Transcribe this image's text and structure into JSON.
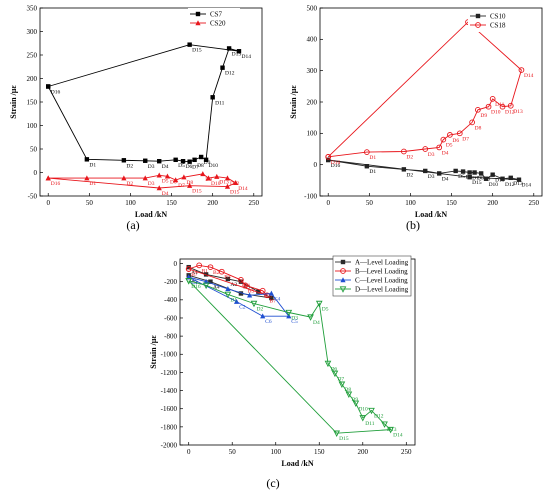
{
  "panels": {
    "a": {
      "caption": "(a)"
    },
    "b": {
      "caption": "(b)"
    },
    "c": {
      "caption": "(c)"
    }
  },
  "chart_data": [
    {
      "id": "a",
      "type": "line",
      "caption": "(a)",
      "xlabel": "Load /kN",
      "ylabel": "Strain /με",
      "xlim": [
        -10,
        260
      ],
      "ylim": [
        -50,
        350
      ],
      "xticks": [
        0,
        50,
        100,
        150,
        200,
        250
      ],
      "yticks": [
        -50,
        0,
        50,
        100,
        150,
        200,
        250,
        300,
        350
      ],
      "grid": false,
      "legend_position": "top-right",
      "series": [
        {
          "name": "CS7",
          "color": "#000000",
          "marker": "square",
          "points": [
            {
              "x": 0,
              "y": 183,
              "label": "D16"
            },
            {
              "x": 47,
              "y": 28,
              "label": "D1"
            },
            {
              "x": 92,
              "y": 26,
              "label": "D2"
            },
            {
              "x": 118,
              "y": 25,
              "label": "D3"
            },
            {
              "x": 135,
              "y": 24,
              "label": "D4"
            },
            {
              "x": 155,
              "y": 27,
              "label": "D5"
            },
            {
              "x": 164,
              "y": 24,
              "label": "D6"
            },
            {
              "x": 172,
              "y": 23,
              "label": "D7"
            },
            {
              "x": 178,
              "y": 27,
              "label": "D8"
            },
            {
              "x": 186,
              "y": 33,
              "label": "D9"
            },
            {
              "x": 192,
              "y": 27,
              "label": "D10"
            },
            {
              "x": 200,
              "y": 160,
              "label": "D11"
            },
            {
              "x": 212,
              "y": 223,
              "label": "D12"
            },
            {
              "x": 220,
              "y": 264,
              "label": "D13"
            },
            {
              "x": 232,
              "y": 258,
              "label": "D14"
            },
            {
              "x": 172,
              "y": 272,
              "label": "D15"
            },
            {
              "x": 0,
              "y": 183,
              "label": ""
            }
          ]
        },
        {
          "name": "CS20",
          "color": "#e8161c",
          "marker": "triangle",
          "points": [
            {
              "x": 0,
              "y": -12,
              "label": "D16"
            },
            {
              "x": 47,
              "y": -12,
              "label": "D1"
            },
            {
              "x": 92,
              "y": -12,
              "label": "D2"
            },
            {
              "x": 118,
              "y": -12,
              "label": "D3"
            },
            {
              "x": 135,
              "y": -6,
              "label": "D5"
            },
            {
              "x": 145,
              "y": -8,
              "label": "D6"
            },
            {
              "x": 155,
              "y": -16,
              "label": "D7"
            },
            {
              "x": 165,
              "y": -10,
              "label": "D8"
            },
            {
              "x": 188,
              "y": -3,
              "label": "D9"
            },
            {
              "x": 195,
              "y": -12,
              "label": "D10"
            },
            {
              "x": 205,
              "y": -9,
              "label": "D13"
            },
            {
              "x": 218,
              "y": -12,
              "label": "D12"
            },
            {
              "x": 228,
              "y": -22,
              "label": "D14"
            },
            {
              "x": 218,
              "y": -30,
              "label": "D15"
            },
            {
              "x": 172,
              "y": -28,
              "label": "D15"
            },
            {
              "x": 135,
              "y": -33,
              "label": "D4"
            },
            {
              "x": 0,
              "y": -12,
              "label": ""
            }
          ]
        }
      ]
    },
    {
      "id": "b",
      "type": "line",
      "caption": "(b)",
      "xlabel": "Load /kN",
      "ylabel": "Strain /με",
      "xlim": [
        -10,
        260
      ],
      "ylim": [
        -100,
        500
      ],
      "xticks": [
        0,
        50,
        100,
        150,
        200,
        250
      ],
      "yticks": [
        -100,
        0,
        100,
        200,
        300,
        400,
        500
      ],
      "grid": false,
      "legend_position": "top-right",
      "series": [
        {
          "name": "CS10",
          "color": "#222222",
          "marker": "square",
          "points": [
            {
              "x": 0,
              "y": 15,
              "label": "D16"
            },
            {
              "x": 47,
              "y": -5,
              "label": "D1"
            },
            {
              "x": 92,
              "y": -15,
              "label": "D2"
            },
            {
              "x": 118,
              "y": -20,
              "label": "D3"
            },
            {
              "x": 135,
              "y": -28,
              "label": "D4"
            },
            {
              "x": 155,
              "y": -20,
              "label": "D5"
            },
            {
              "x": 164,
              "y": -22,
              "label": "D6"
            },
            {
              "x": 172,
              "y": -25,
              "label": "D7"
            },
            {
              "x": 178,
              "y": -25,
              "label": "D8"
            },
            {
              "x": 186,
              "y": -28,
              "label": "D9"
            },
            {
              "x": 192,
              "y": -45,
              "label": "D10"
            },
            {
              "x": 200,
              "y": -32,
              "label": "D11"
            },
            {
              "x": 212,
              "y": -45,
              "label": "D12"
            },
            {
              "x": 222,
              "y": -42,
              "label": "D13"
            },
            {
              "x": 232,
              "y": -48,
              "label": "D14"
            },
            {
              "x": 172,
              "y": -40,
              "label": "D15"
            },
            {
              "x": 0,
              "y": 15,
              "label": ""
            }
          ]
        },
        {
          "name": "CS18",
          "color": "#e8161c",
          "marker": "circle",
          "points": [
            {
              "x": 0,
              "y": 25,
              "label": "D16"
            },
            {
              "x": 47,
              "y": 40,
              "label": "D1"
            },
            {
              "x": 92,
              "y": 42,
              "label": "D2"
            },
            {
              "x": 118,
              "y": 50,
              "label": "D3"
            },
            {
              "x": 135,
              "y": 55,
              "label": "D4"
            },
            {
              "x": 140,
              "y": 80,
              "label": "D5"
            },
            {
              "x": 148,
              "y": 95,
              "label": "D6"
            },
            {
              "x": 160,
              "y": 100,
              "label": "D7"
            },
            {
              "x": 175,
              "y": 135,
              "label": "D8"
            },
            {
              "x": 182,
              "y": 175,
              "label": "D9"
            },
            {
              "x": 195,
              "y": 185,
              "label": "D10"
            },
            {
              "x": 200,
              "y": 210,
              "label": "D11"
            },
            {
              "x": 212,
              "y": 185,
              "label": "D12"
            },
            {
              "x": 222,
              "y": 188,
              "label": "D13"
            },
            {
              "x": 235,
              "y": 302,
              "label": "D14"
            },
            {
              "x": 170,
              "y": 455,
              "label": "D15"
            },
            {
              "x": 0,
              "y": 25,
              "label": ""
            }
          ]
        }
      ]
    },
    {
      "id": "c",
      "type": "line",
      "caption": "(c)",
      "xlabel": "Load /kN",
      "ylabel": "Strain /με",
      "xlim": [
        -10,
        260
      ],
      "ylim": [
        -2000,
        50
      ],
      "xticks": [
        0,
        50,
        100,
        150,
        200,
        250
      ],
      "yticks": [
        0,
        -200,
        -400,
        -600,
        -800,
        -1000,
        -1200,
        -1400,
        -1600,
        -1800,
        -2000
      ],
      "grid": false,
      "legend_position": "top-right",
      "series": [
        {
          "name": "A—Level Loading",
          "color": "#2b2b2b",
          "marker": "square",
          "points": [
            {
              "x": 0,
              "y": -40,
              "label": "A1"
            },
            {
              "x": 20,
              "y": -120,
              "label": ""
            },
            {
              "x": 45,
              "y": -170,
              "label": "A2"
            },
            {
              "x": 60,
              "y": -200,
              "label": "A3"
            },
            {
              "x": 80,
              "y": -310,
              "label": ""
            },
            {
              "x": 95,
              "y": -380,
              "label": ""
            },
            {
              "x": 60,
              "y": -330,
              "label": ""
            },
            {
              "x": 25,
              "y": -200,
              "label": "A4"
            },
            {
              "x": 0,
              "y": -130,
              "label": "A5"
            }
          ]
        },
        {
          "name": "B—Level Loading",
          "color": "#e8161c",
          "marker": "circle",
          "points": [
            {
              "x": 0,
              "y": -60,
              "label": ""
            },
            {
              "x": 12,
              "y": -20,
              "label": "B1"
            },
            {
              "x": 25,
              "y": -40,
              "label": "B2"
            },
            {
              "x": 38,
              "y": -90,
              "label": "B3"
            },
            {
              "x": 60,
              "y": -180,
              "label": "B4"
            },
            {
              "x": 65,
              "y": -240,
              "label": "B5"
            },
            {
              "x": 85,
              "y": -300,
              "label": "B6"
            },
            {
              "x": 90,
              "y": -350,
              "label": "B7"
            },
            {
              "x": 0,
              "y": -60,
              "label": "B7"
            }
          ]
        },
        {
          "name": "C—Level Loading",
          "color": "#1f4fd1",
          "marker": "triangle",
          "points": [
            {
              "x": 0,
              "y": -150,
              "label": "C1"
            },
            {
              "x": 20,
              "y": -200,
              "label": ""
            },
            {
              "x": 45,
              "y": -280,
              "label": ""
            },
            {
              "x": 70,
              "y": -350,
              "label": ""
            },
            {
              "x": 95,
              "y": -330,
              "label": "C4"
            },
            {
              "x": 115,
              "y": -580,
              "label": "C5"
            },
            {
              "x": 85,
              "y": -580,
              "label": "C6"
            },
            {
              "x": 55,
              "y": -420,
              "label": "C2"
            },
            {
              "x": 0,
              "y": -150,
              "label": "C3"
            }
          ]
        },
        {
          "name": "D—Level Loading",
          "color": "#1f9e3a",
          "marker": "triangle-down",
          "points": [
            {
              "x": 0,
              "y": -190,
              "label": "D16"
            },
            {
              "x": 20,
              "y": -240,
              "label": ""
            },
            {
              "x": 45,
              "y": -340,
              "label": "D1"
            },
            {
              "x": 75,
              "y": -440,
              "label": "D2"
            },
            {
              "x": 115,
              "y": -540,
              "label": "D3"
            },
            {
              "x": 140,
              "y": -590,
              "label": "D4"
            },
            {
              "x": 150,
              "y": -440,
              "label": "D5"
            },
            {
              "x": 160,
              "y": -1100,
              "label": "D6"
            },
            {
              "x": 168,
              "y": -1210,
              "label": "D7"
            },
            {
              "x": 176,
              "y": -1330,
              "label": "D8"
            },
            {
              "x": 184,
              "y": -1440,
              "label": "D9"
            },
            {
              "x": 192,
              "y": -1540,
              "label": "D10"
            },
            {
              "x": 200,
              "y": -1700,
              "label": "D11"
            },
            {
              "x": 210,
              "y": -1620,
              "label": "D12"
            },
            {
              "x": 225,
              "y": -1770,
              "label": "D13"
            },
            {
              "x": 232,
              "y": -1830,
              "label": "D14"
            },
            {
              "x": 170,
              "y": -1870,
              "label": "D15"
            },
            {
              "x": 0,
              "y": -190,
              "label": ""
            }
          ]
        }
      ]
    }
  ]
}
